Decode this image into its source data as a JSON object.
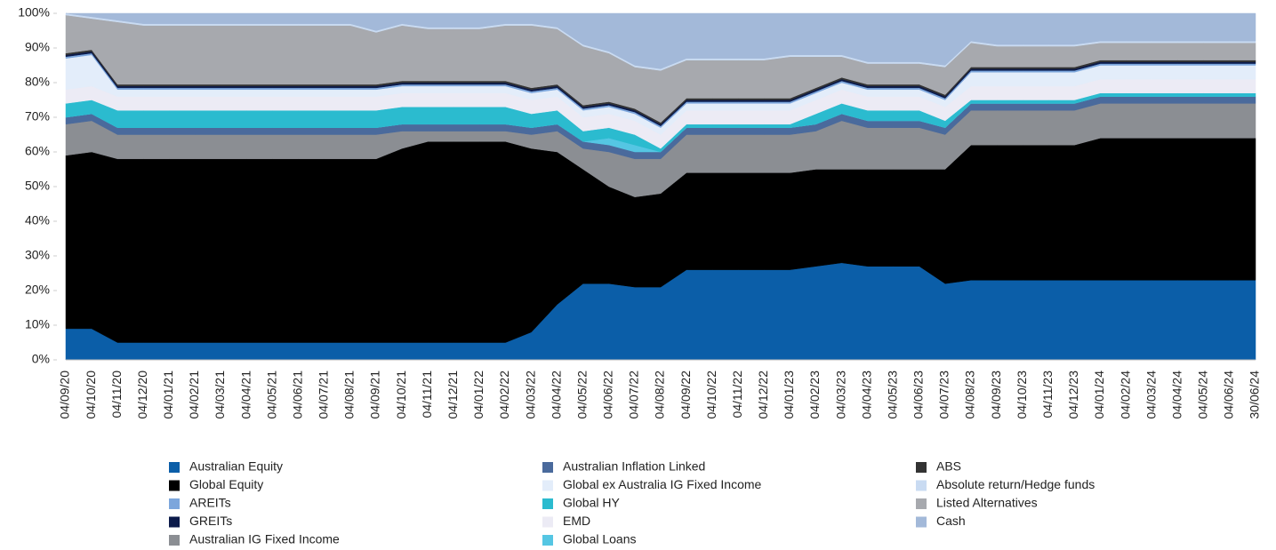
{
  "chart_data": {
    "type": "stacked_area",
    "categories": [
      "04/09/20",
      "04/10/20",
      "04/11/20",
      "04/12/20",
      "04/01/21",
      "04/02/21",
      "04/03/21",
      "04/04/21",
      "04/05/21",
      "04/06/21",
      "04/07/21",
      "04/08/21",
      "04/09/21",
      "04/10/21",
      "04/11/21",
      "04/12/21",
      "04/01/22",
      "04/02/22",
      "04/03/22",
      "04/04/22",
      "04/05/22",
      "04/06/22",
      "04/07/22",
      "04/08/22",
      "04/09/22",
      "04/10/22",
      "04/11/22",
      "04/12/22",
      "04/01/23",
      "04/02/23",
      "04/03/23",
      "04/04/23",
      "04/05/23",
      "04/06/23",
      "04/07/23",
      "04/08/23",
      "04/09/23",
      "04/10/23",
      "04/11/23",
      "04/12/23",
      "04/01/24",
      "04/02/24",
      "04/03/24",
      "04/04/24",
      "04/05/24",
      "04/06/24",
      "30/06/24"
    ],
    "ylim": [
      0,
      100
    ],
    "yticks": [
      {
        "value": 0,
        "label": "0%"
      },
      {
        "value": 10,
        "label": "10%"
      },
      {
        "value": 20,
        "label": "20%"
      },
      {
        "value": 30,
        "label": "30%"
      },
      {
        "value": 40,
        "label": "40%"
      },
      {
        "value": 50,
        "label": "50%"
      },
      {
        "value": 60,
        "label": "60%"
      },
      {
        "value": 70,
        "label": "70%"
      },
      {
        "value": 80,
        "label": "80%"
      },
      {
        "value": 90,
        "label": "90%"
      },
      {
        "value": 100,
        "label": "100%"
      }
    ],
    "series": [
      {
        "name": "Australian Equity",
        "color": "#0b5ea8",
        "values": [
          9,
          9,
          5,
          5,
          5,
          5,
          5,
          5,
          5,
          5,
          5,
          5,
          5,
          5,
          5,
          5,
          5,
          5,
          8,
          16,
          22,
          22,
          21,
          21,
          26,
          26,
          26,
          26,
          26,
          27,
          28,
          27,
          27,
          27,
          22,
          23,
          23,
          23,
          23,
          23,
          23,
          23,
          23,
          23,
          23,
          23,
          23
        ]
      },
      {
        "name": "Global Equity",
        "color": "#000000",
        "values": [
          50,
          51,
          53,
          53,
          53,
          53,
          53,
          53,
          53,
          53,
          53,
          53,
          53,
          56,
          58,
          58,
          58,
          58,
          53,
          44,
          33,
          28,
          26,
          27,
          28,
          28,
          28,
          28,
          28,
          28,
          27,
          28,
          28,
          28,
          33,
          39,
          39,
          39,
          39,
          39,
          41,
          41,
          41,
          41,
          41,
          41,
          41
        ]
      },
      {
        "name": "Australian IG Fixed Income",
        "color": "#8b8e93",
        "values": [
          9,
          9,
          7,
          7,
          7,
          7,
          7,
          7,
          7,
          7,
          7,
          7,
          7,
          5,
          3,
          3,
          3,
          3,
          4,
          6,
          6,
          10,
          11,
          10,
          11,
          11,
          11,
          11,
          11,
          11,
          14,
          12,
          12,
          12,
          10,
          10,
          10,
          10,
          10,
          10,
          10,
          10,
          10,
          10,
          10,
          10,
          10
        ]
      },
      {
        "name": "Australian Inflation Linked",
        "color": "#4a6a9c",
        "values": [
          2,
          2,
          2,
          2,
          2,
          2,
          2,
          2,
          2,
          2,
          2,
          2,
          2,
          2,
          2,
          2,
          2,
          2,
          2,
          2,
          2,
          2,
          2,
          2,
          2,
          2,
          2,
          2,
          2,
          2,
          2,
          2,
          2,
          2,
          2,
          2,
          2,
          2,
          2,
          2,
          2,
          2,
          2,
          2,
          2,
          2,
          2
        ]
      },
      {
        "name": "Global Loans",
        "color": "#55c6e3",
        "values": [
          0,
          0,
          0,
          0,
          0,
          0,
          0,
          0,
          0,
          0,
          0,
          0,
          0,
          0,
          0,
          0,
          0,
          0,
          0,
          0,
          0,
          2,
          2,
          0,
          0,
          0,
          0,
          0,
          0,
          0,
          0,
          0,
          0,
          0,
          0,
          0,
          0,
          0,
          0,
          0,
          0,
          0,
          0,
          0,
          0,
          0,
          0
        ]
      },
      {
        "name": "Global HY",
        "color": "#2bbbcf",
        "values": [
          4,
          4,
          5,
          5,
          5,
          5,
          5,
          5,
          5,
          5,
          5,
          5,
          5,
          5,
          5,
          5,
          5,
          5,
          4,
          4,
          3,
          3,
          3,
          1,
          1,
          1,
          1,
          1,
          1,
          3,
          3,
          3,
          3,
          3,
          2,
          1,
          1,
          1,
          1,
          1,
          1,
          1,
          1,
          1,
          1,
          1,
          1
        ]
      },
      {
        "name": "EMD",
        "color": "#ecebf5",
        "values": [
          4,
          4,
          4,
          4,
          4,
          4,
          4,
          4,
          4,
          4,
          4,
          4,
          4,
          4,
          4,
          4,
          4,
          4,
          4,
          4,
          4,
          4,
          4,
          4,
          4,
          4,
          4,
          4,
          4,
          4,
          4,
          4,
          4,
          4,
          4,
          4,
          4,
          4,
          4,
          4,
          4,
          4,
          4,
          4,
          4,
          4,
          4
        ]
      },
      {
        "name": "Global ex Australia IG Fixed Income",
        "color": "#e3edfa",
        "values": [
          9,
          9,
          2,
          2,
          2,
          2,
          2,
          2,
          2,
          2,
          2,
          2,
          2,
          2,
          2,
          2,
          2,
          2,
          2,
          2,
          2,
          2,
          2,
          2,
          2,
          2,
          2,
          2,
          2,
          2,
          2,
          2,
          2,
          2,
          2,
          4,
          4,
          4,
          4,
          4,
          4,
          4,
          4,
          4,
          4,
          4,
          4
        ]
      },
      {
        "name": "AREITs",
        "color": "#7ca6dc",
        "values": [
          0.5,
          0.5,
          0.5,
          0.5,
          0.5,
          0.5,
          0.5,
          0.5,
          0.5,
          0.5,
          0.5,
          0.5,
          0.5,
          0.5,
          0.5,
          0.5,
          0.5,
          0.5,
          0.5,
          0.5,
          0.5,
          0.5,
          0.5,
          0.5,
          0.5,
          0.5,
          0.5,
          0.5,
          0.5,
          0.5,
          0.5,
          0.5,
          0.5,
          0.5,
          0.5,
          0.5,
          0.5,
          0.5,
          0.5,
          0.5,
          0.5,
          0.5,
          0.5,
          0.5,
          0.5,
          0.5,
          0.5
        ]
      },
      {
        "name": "GREITs",
        "color": "#0b1a4a",
        "values": [
          0.5,
          0.5,
          0.5,
          0.5,
          0.5,
          0.5,
          0.5,
          0.5,
          0.5,
          0.5,
          0.5,
          0.5,
          0.5,
          0.5,
          0.5,
          0.5,
          0.5,
          0.5,
          0.5,
          0.5,
          0.5,
          0.5,
          0.5,
          0.5,
          0.5,
          0.5,
          0.5,
          0.5,
          0.5,
          0.5,
          0.5,
          0.5,
          0.5,
          0.5,
          0.5,
          0.5,
          0.5,
          0.5,
          0.5,
          0.5,
          0.5,
          0.5,
          0.5,
          0.5,
          0.5,
          0.5,
          0.5
        ]
      },
      {
        "name": "ABS",
        "color": "#333333",
        "values": [
          0.5,
          0.5,
          0.5,
          0.5,
          0.5,
          0.5,
          0.5,
          0.5,
          0.5,
          0.5,
          0.5,
          0.5,
          0.5,
          0.5,
          0.5,
          0.5,
          0.5,
          0.5,
          0.5,
          0.5,
          0.5,
          0.5,
          0.5,
          0.5,
          0.5,
          0.5,
          0.5,
          0.5,
          0.5,
          0.5,
          0.5,
          0.5,
          0.5,
          0.5,
          0.5,
          0.5,
          0.5,
          0.5,
          0.5,
          0.5,
          0.5,
          0.5,
          0.5,
          0.5,
          0.5,
          0.5,
          0.5
        ]
      },
      {
        "name": "Listed Alternatives",
        "color": "#a7a9ae",
        "values": [
          11,
          9,
          18,
          17,
          17,
          17,
          17,
          17,
          17,
          17,
          17,
          17,
          15,
          16,
          15,
          15,
          15,
          16,
          18,
          16,
          17,
          14,
          12,
          15,
          11,
          11,
          11,
          11,
          12,
          9,
          6,
          6,
          6,
          6,
          8,
          7,
          6,
          6,
          6,
          6,
          5,
          5,
          5,
          5,
          5,
          5,
          5
        ]
      },
      {
        "name": "Absolute return/Hedge funds",
        "color": "#c9dbf2",
        "values": [
          0.5,
          0.5,
          0.5,
          0.5,
          0.5,
          0.5,
          0.5,
          0.5,
          0.5,
          0.5,
          0.5,
          0.5,
          0.5,
          0.5,
          0.5,
          0.5,
          0.5,
          0.5,
          0.5,
          0.5,
          0.5,
          0.5,
          0.5,
          0.5,
          0.5,
          0.5,
          0.5,
          0.5,
          0.5,
          0.5,
          0.5,
          0.5,
          0.5,
          0.5,
          0.5,
          0.5,
          0.5,
          0.5,
          0.5,
          0.5,
          0.5,
          0.5,
          0.5,
          0.5,
          0.5,
          0.5,
          0.5
        ]
      },
      {
        "name": "Cash",
        "color": "#a3b9d9",
        "values": [
          0,
          1,
          2,
          3,
          3,
          3,
          3,
          3,
          3,
          3,
          3,
          3,
          5,
          3,
          4,
          4,
          4,
          3,
          3,
          4,
          9,
          11,
          15,
          16,
          13,
          13,
          13,
          13,
          12,
          12,
          12,
          14,
          14,
          14,
          15,
          8,
          9,
          9,
          9,
          9,
          8,
          8,
          8,
          8,
          8,
          8,
          8
        ]
      }
    ],
    "legend_order": [
      "Australian Equity",
      "Australian Inflation Linked",
      "ABS",
      "Global Equity",
      "Global ex Australia IG Fixed Income",
      "Absolute return/Hedge funds",
      "AREITs",
      "Global HY",
      "Listed Alternatives",
      "GREITs",
      "EMD",
      "Cash",
      "Australian IG Fixed Income",
      "Global Loans"
    ]
  }
}
